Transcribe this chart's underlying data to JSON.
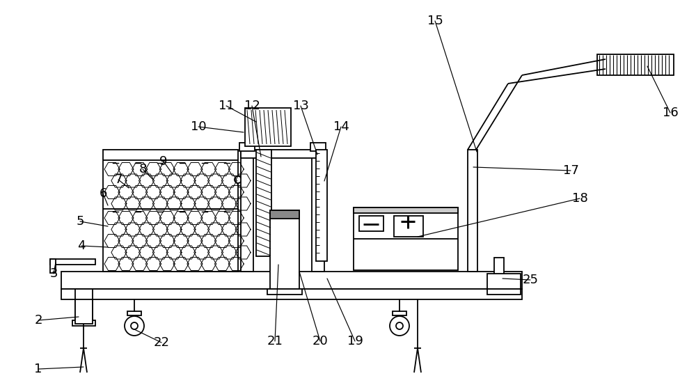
{
  "bg_color": "#ffffff",
  "line_color": "#000000",
  "lw": 1.3,
  "fs": 13,
  "figw": 10.0,
  "figh": 5.4,
  "dpi": 100
}
